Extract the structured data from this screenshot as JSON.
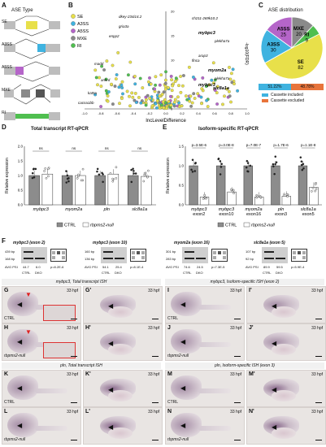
{
  "panelA": {
    "label": "A",
    "title": "ASE Type",
    "types": [
      "SE",
      "A3SS",
      "A5SS",
      "MXE",
      "RI"
    ]
  },
  "panelB": {
    "label": "B",
    "legend": [
      "SE",
      "A3SS",
      "A5SS",
      "MXE",
      "RI"
    ],
    "xlabel": "IncLevelDifference",
    "ylabel": "-log10(FDR)",
    "xticks": [
      "-1.0",
      "-0.8",
      "-0.6",
      "-0.4",
      "-0.2",
      "0.0",
      "0.2",
      "0.4",
      "0.6",
      "0.8",
      "1.0"
    ],
    "yticks": [
      "0",
      "5",
      "10",
      "15",
      "20"
    ],
    "gene_labels": [
      "ch211-269k10.2",
      "dkey-234i14.2",
      "gria3a",
      "enpp2",
      "mybpc3",
      "plekha7a",
      "arap3",
      "flnca",
      "madd",
      "ankrd",
      "myom2a",
      "plekha7a",
      "mybpc3",
      "slc8a1a",
      "kat5a",
      "cacna1bb"
    ]
  },
  "panelC": {
    "label": "C",
    "title": "ASE distribution",
    "slices": [
      {
        "name": "SE",
        "value": 82,
        "color": "#e8e04a"
      },
      {
        "name": "A3SS",
        "value": 30,
        "color": "#3fb3e0"
      },
      {
        "name": "A5SS",
        "value": 25,
        "color": "#b565c9"
      },
      {
        "name": "MXE",
        "value": 20,
        "color": "#8a8a8a"
      },
      {
        "name": "RI",
        "value": 9,
        "color": "#4fbf4f"
      }
    ],
    "bar_left": "51.22%",
    "bar_right": "48.78%",
    "legend_included": "Cassette included",
    "legend_excluded": "Cassette excluded"
  },
  "panelD": {
    "label": "D",
    "title": "Total transcript RT-qPCR",
    "ylabel": "Relative expression",
    "yticks": [
      "0.0",
      "0.5",
      "1.0",
      "1.5",
      "2.0"
    ],
    "genes": [
      "mybpc3",
      "myom2a",
      "pln",
      "slc8a1a"
    ],
    "sig": [
      "ns",
      "ns",
      "ns",
      "ns"
    ],
    "legend": [
      "CTRL",
      "rbpms2-null"
    ]
  },
  "panelE": {
    "label": "E",
    "title": "Isoform-specific RT-qPCR",
    "ylabel": "Relative expression",
    "yticks": [
      "0.0",
      "0.5",
      "1.0",
      "1.5"
    ],
    "genes": [
      "mybpc3 exon2",
      "mybpc3 exon10",
      "myom2a exon16",
      "pln exon3",
      "slc8a1a exon5"
    ],
    "pvals": [
      "p=3.5E-6",
      "p=3.0E-8",
      "p=7.0E-7",
      "p=1.7E-6",
      "p=1.1E-8"
    ],
    "legend": [
      "CTRL",
      "rbpms2-null"
    ]
  },
  "panelF": {
    "label": "F",
    "gels": [
      {
        "title": "mybpc3 (exon 2)",
        "bp_top": "439 bp",
        "bp_bottom": "168 bp",
        "psi": [
          "44.7",
          "6.0"
        ],
        "p": "p=8.2E-6"
      },
      {
        "title": "mybpc3 (exon 10)",
        "bp_top": "160 bp",
        "bp_bottom": "136 bp",
        "psi": [
          "54.1",
          "25.4"
        ],
        "p": "p=8.1E-4"
      },
      {
        "title": "myom2a (exon 16)",
        "bp_top": "301 bp",
        "bp_bottom": "283 bp",
        "psi": [
          "74.6",
          "24.5"
        ],
        "p": "p=7.3E-5"
      },
      {
        "title": "slc8a1a (exon 5)",
        "bp_top": "107 bp",
        "bp_bottom": "92 bp",
        "psi": [
          "89.9",
          "59.5"
        ],
        "p": "p=5.9E-4"
      }
    ],
    "psi_label": "AVG PSI",
    "lanes": [
      "CTRL",
      "DKO"
    ]
  },
  "ish": {
    "header1": "mybpc3, Total transcript ISH",
    "header2": "mybpc3, Isoform-specific ISH (exon 2)",
    "header3": "pln, Total transcript ISH",
    "header4": "pln, Isoform-specific ISH (exon 3)",
    "stage": "33 hpf",
    "ctrl": "CTRL",
    "null": "rbpms2-null",
    "panels": [
      "G",
      "G'",
      "I",
      "I'",
      "H",
      "H'",
      "J",
      "J'",
      "K",
      "K'",
      "M",
      "M'",
      "L",
      "L'",
      "N",
      "N'"
    ]
  }
}
